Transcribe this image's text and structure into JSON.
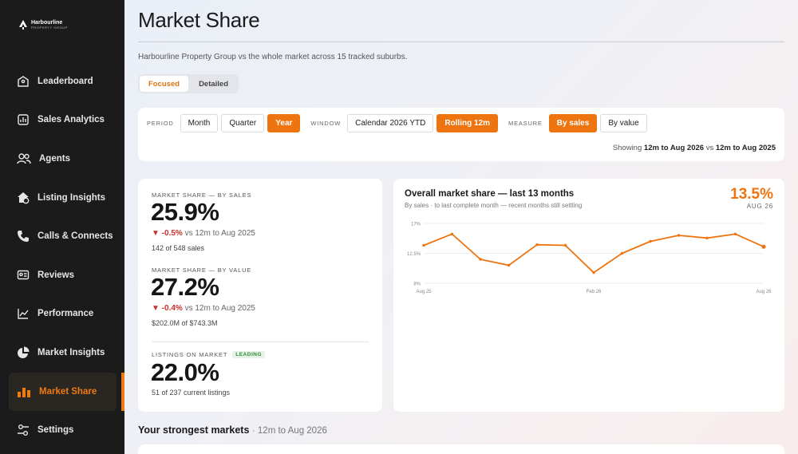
{
  "brand": {
    "name": "Harbourline",
    "sub": "PROPERTY GROUP"
  },
  "nav": [
    {
      "label": "Leaderboard",
      "icon": "tag-icon"
    },
    {
      "label": "Sales Analytics",
      "icon": "analytics-icon"
    },
    {
      "label": "Agents",
      "icon": "people-icon"
    },
    {
      "label": "Listing Insights",
      "icon": "house-icon"
    },
    {
      "label": "Calls & Connects",
      "icon": "phone-icon"
    },
    {
      "label": "Reviews",
      "icon": "review-icon"
    },
    {
      "label": "Performance",
      "icon": "line-chart-icon"
    },
    {
      "label": "Market Insights",
      "icon": "pie-chart-icon"
    },
    {
      "label": "Market Share",
      "icon": "bar-chart-icon",
      "active": true
    },
    {
      "label": "Settings",
      "icon": "settings-icon"
    }
  ],
  "page": {
    "title": "Market Share",
    "subtitle": "Harbourline Property Group vs the whole market across 15 tracked suburbs."
  },
  "view_toggle": {
    "focused": "Focused",
    "detailed": "Detailed",
    "selected": "Focused"
  },
  "filters": {
    "period_label": "PERIOD",
    "period_options": [
      "Month",
      "Quarter",
      "Year"
    ],
    "period_selected": "Year",
    "window_label": "WINDOW",
    "window_options": [
      "Calendar 2026 YTD",
      "Rolling 12m"
    ],
    "window_selected": "Rolling 12m",
    "measure_label": "MEASURE",
    "measure_options": [
      "By sales",
      "By value"
    ],
    "measure_selected": "By sales",
    "showing_prefix": "Showing",
    "showing_current": "12m to Aug 2026",
    "showing_vs": "vs",
    "showing_compare": "12m to Aug 2025"
  },
  "metrics": {
    "sales": {
      "label": "MARKET SHARE — BY SALES",
      "value": "25.9%",
      "delta": "▼ -0.5%",
      "delta_rest": "vs 12m to Aug 2025",
      "note": "142 of 548 sales"
    },
    "value": {
      "label": "MARKET SHARE — BY VALUE",
      "value": "27.2%",
      "delta": "▼ -0.4%",
      "delta_rest": "vs 12m to Aug 2025",
      "note": "$202.0M of $743.3M"
    },
    "listings": {
      "label": "LISTINGS ON MARKET",
      "badge": "LEADING",
      "value": "22.0%",
      "note": "51 of 237 current listings"
    }
  },
  "chart_card": {
    "title": "Overall market share — last 13 months",
    "subtitle": "By sales · to last complete month — recent months still settling",
    "big_value": "13.5%",
    "big_date": "AUG 26",
    "line_color": "#ee7410"
  },
  "chart_data": {
    "type": "line",
    "x": [
      "Aug 25",
      "Sep 25",
      "Oct 25",
      "Nov 25",
      "Dec 25",
      "Jan 26",
      "Feb 26",
      "Mar 26",
      "Apr 26",
      "May 26",
      "Jun 26",
      "Jul 26",
      "Aug 26"
    ],
    "x_tick_labels": [
      "Aug 25",
      "Feb 26",
      "Aug 26"
    ],
    "y_tick_labels": [
      "17%",
      "12.5%",
      "8%"
    ],
    "ylim": [
      8,
      17
    ],
    "series": [
      {
        "values": [
          13.7,
          15.4,
          11.6,
          10.7,
          13.8,
          13.7,
          9.6,
          12.5,
          14.3,
          15.2,
          14.8,
          15.4,
          13.5
        ]
      }
    ],
    "grid": true
  },
  "strongest": {
    "title": "Your strongest markets",
    "period": "· 12m to Aug 2026"
  }
}
